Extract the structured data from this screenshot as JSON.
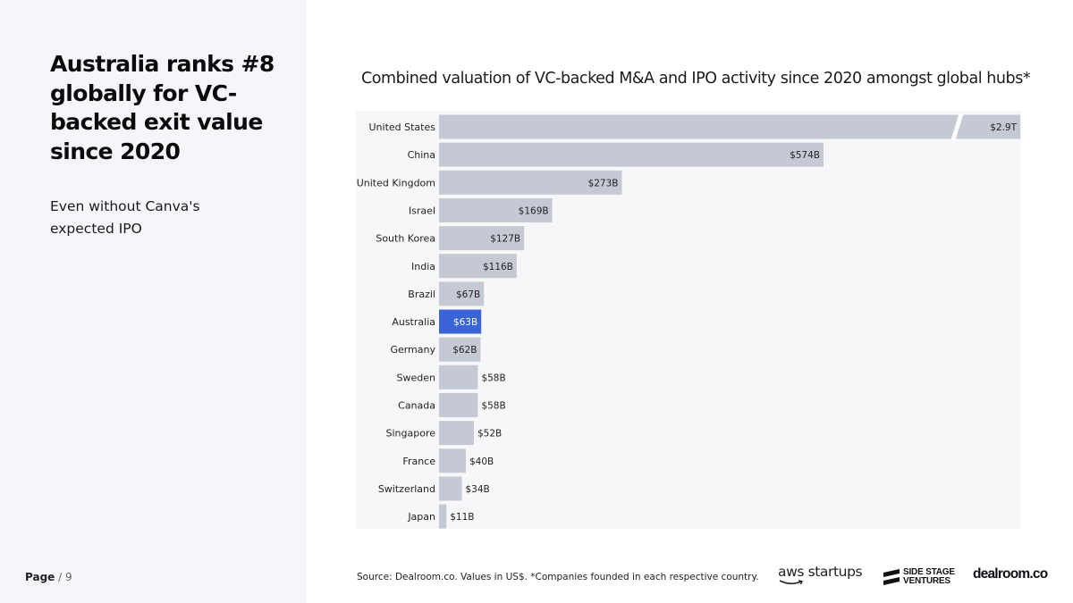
{
  "headline": "Australia ranks #8 globally for VC-backed exit value since 2020",
  "subtext": "Even without Canva's expected IPO",
  "page": {
    "label": "Page",
    "separator": "/ 9"
  },
  "source_note": "Source:  Dealroom.co. Values in US$.  *Companies founded in each respective country.",
  "logos": {
    "aws": "aws startups",
    "side_stage": "SIDE STAGE VENTURES",
    "side_stage_line1": "SIDE STAGE",
    "side_stage_line2": "VENTURES",
    "dealroom": "dealroom.co"
  },
  "colors": {
    "bar": "#c5c9d3",
    "highlight": "#3a63d8",
    "panel": "#f5f6fb",
    "plot_bg": "#f7f7f9"
  },
  "chart_data": {
    "type": "bar",
    "orientation": "horizontal",
    "title": "Combined valuation of VC-backed M&A and IPO activity since 2020 amongst global hubs*",
    "xlabel": "",
    "ylabel": "",
    "unit": "US$ billions",
    "categories": [
      "United States",
      "China",
      "United Kingdom",
      "Israel",
      "South Korea",
      "India",
      "Brazil",
      "Australia",
      "Germany",
      "Sweden",
      "Canada",
      "Singapore",
      "France",
      "Switzerland",
      "Japan"
    ],
    "values": [
      2900,
      574,
      273,
      169,
      127,
      116,
      67,
      63,
      62,
      58,
      58,
      52,
      40,
      34,
      11
    ],
    "labels": [
      "$2.9T",
      "$574B",
      "$273B",
      "$169B",
      "$127B",
      "$116B",
      "$67B",
      "$63B",
      "$62B",
      "$58B",
      "$58B",
      "$52B",
      "$40B",
      "$34B",
      "$11B"
    ],
    "highlight": "Australia",
    "axis_break": "United States",
    "grid": false,
    "legend": "none"
  }
}
